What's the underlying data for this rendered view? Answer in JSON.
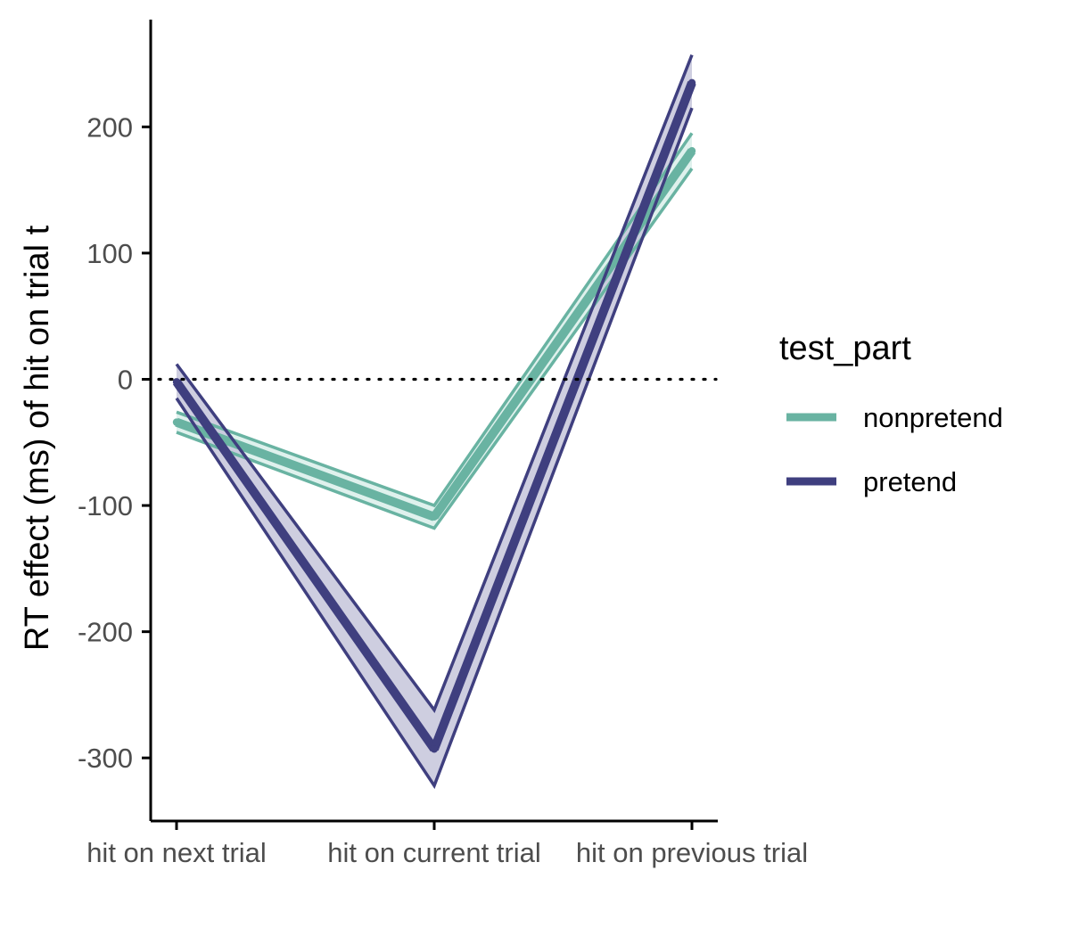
{
  "chart_data": {
    "type": "line",
    "title": "",
    "xlabel": "",
    "ylabel": "RT effect (ms) of hit on trial t",
    "categories": [
      "hit on next trial",
      "hit on current trial",
      "hit on previous trial"
    ],
    "ylim": [
      -350,
      285
    ],
    "yticks": [
      -300,
      -200,
      -100,
      0,
      100,
      200
    ],
    "ytick_labels": [
      "-300",
      "-200",
      "-100",
      "0",
      "100",
      "200"
    ],
    "reference_line": {
      "y": 0,
      "style": "dotted"
    },
    "legend": {
      "title": "test_part",
      "placement": "right",
      "entries": [
        "nonpretend",
        "pretend"
      ]
    },
    "series": [
      {
        "name": "nonpretend",
        "color": "#69b3a2",
        "band_color": "#d9efea",
        "values": [
          -34,
          -109,
          181
        ],
        "lower": [
          -42,
          -118,
          167
        ],
        "upper": [
          -26,
          -100,
          195
        ]
      },
      {
        "name": "pretend",
        "color": "#3f3f7f",
        "band_color": "#c5c5db",
        "values": [
          -2,
          -293,
          235
        ],
        "lower": [
          -15,
          -322,
          215
        ],
        "upper": [
          12,
          -262,
          257
        ]
      }
    ],
    "grid": false
  }
}
